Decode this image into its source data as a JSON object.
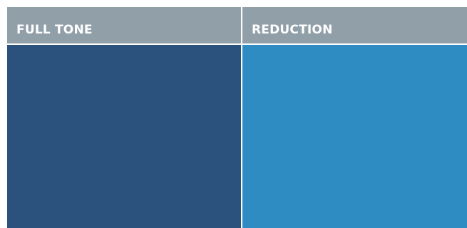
{
  "columns": [
    {
      "label": "FULL TONE",
      "color": "#2b527d"
    },
    {
      "label": "REDUCTION",
      "color": "#2f8cc3"
    }
  ],
  "colors": {
    "header_background": "#909fa8",
    "header_text": "#ffffff",
    "divider": "#ffffff"
  }
}
